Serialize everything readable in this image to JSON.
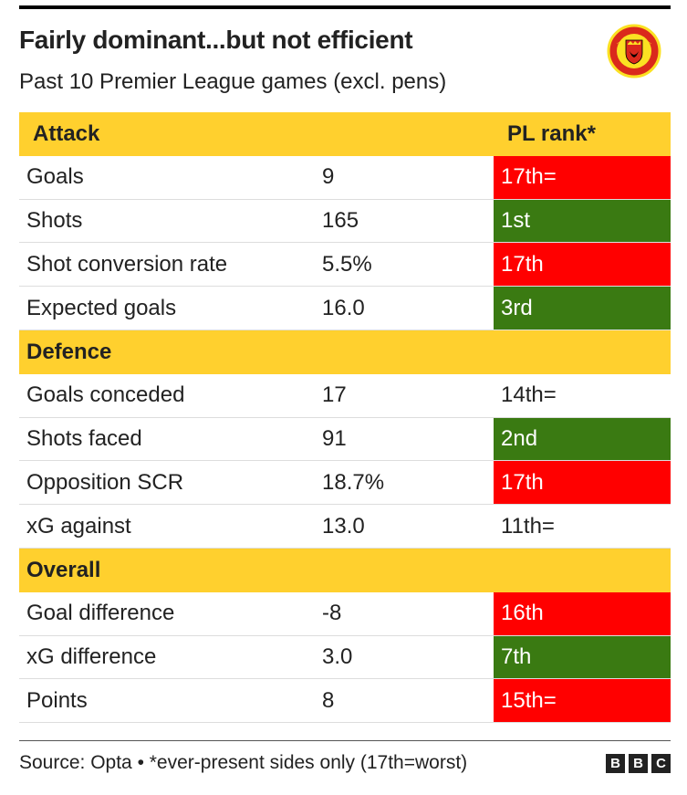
{
  "header": {
    "title": "Fairly dominant...but not efficient",
    "subtitle": "Past 10 Premier League games (excl. pens)"
  },
  "crest": {
    "icon": "manchester-united-crest",
    "top_text": "MANCHESTER",
    "bottom_text": "UNITED"
  },
  "colors": {
    "section": "#ffd02e",
    "bad": "#ff0000",
    "good": "#3a7a12"
  },
  "chart_data": {
    "type": "table",
    "columns": [
      "",
      "",
      "PL rank*"
    ],
    "sections": [
      {
        "name": "Attack",
        "rows": [
          {
            "stat": "Goals",
            "value": "9",
            "rank": "17th=",
            "highlight": "bad"
          },
          {
            "stat": "Shots",
            "value": "165",
            "rank": "1st",
            "highlight": "good"
          },
          {
            "stat": "Shot conversion rate",
            "value": "5.5%",
            "rank": "17th",
            "highlight": "bad"
          },
          {
            "stat": "Expected goals",
            "value": "16.0",
            "rank": "3rd",
            "highlight": "good"
          }
        ]
      },
      {
        "name": "Defence",
        "rows": [
          {
            "stat": "Goals conceded",
            "value": "17",
            "rank": "14th=",
            "highlight": "none"
          },
          {
            "stat": "Shots faced",
            "value": "91",
            "rank": "2nd",
            "highlight": "good"
          },
          {
            "stat": "Opposition SCR",
            "value": "18.7%",
            "rank": "17th",
            "highlight": "bad"
          },
          {
            "stat": "xG against",
            "value": "13.0",
            "rank": "11th=",
            "highlight": "none"
          }
        ]
      },
      {
        "name": "Overall",
        "rows": [
          {
            "stat": "Goal difference",
            "value": "-8",
            "rank": "16th",
            "highlight": "bad"
          },
          {
            "stat": "xG difference",
            "value": "3.0",
            "rank": "7th",
            "highlight": "good"
          },
          {
            "stat": "Points",
            "value": "8",
            "rank": "15th=",
            "highlight": "bad"
          }
        ]
      }
    ]
  },
  "footer": {
    "source": "Source: Opta • *ever-present sides only (17th=worst)",
    "logo_letters": [
      "B",
      "B",
      "C"
    ]
  }
}
